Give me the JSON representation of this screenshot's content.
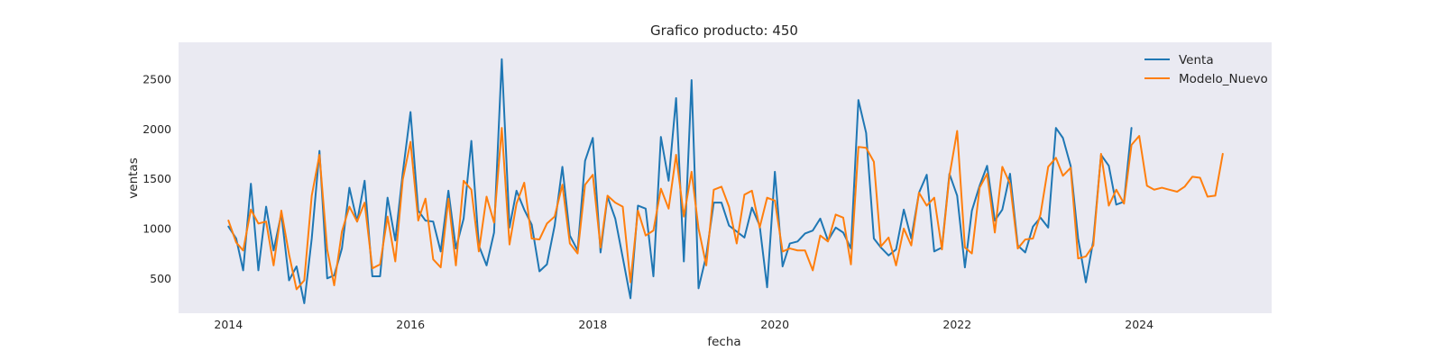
{
  "chart_data": {
    "type": "line",
    "title": "Grafico producto: 450",
    "xlabel": "fecha",
    "ylabel": "ventas",
    "xlim": [
      "2013-06-15",
      "2025-06-15"
    ],
    "ylim": [
      150,
      2870
    ],
    "x_ticks": [
      "2014-01-01",
      "2016-01-01",
      "2018-01-01",
      "2020-01-01",
      "2022-01-01",
      "2024-01-01"
    ],
    "x_tick_labels": [
      "2014",
      "2016",
      "2018",
      "2020",
      "2022",
      "2024"
    ],
    "y_ticks": [
      500,
      1000,
      1500,
      2000,
      2500
    ],
    "y_tick_labels": [
      "500",
      "1000",
      "1500",
      "2000",
      "2500"
    ],
    "grid": false,
    "background": "#EAEAF2",
    "legend": "top-right",
    "series": [
      {
        "name": "Venta",
        "color": "#1f77b4",
        "start": "2014-01",
        "values": [
          1020,
          900,
          580,
          1450,
          580,
          1220,
          780,
          1150,
          480,
          620,
          250,
          900,
          1780,
          500,
          530,
          800,
          1410,
          1070,
          1480,
          520,
          520,
          1310,
          880,
          1560,
          2170,
          1180,
          1080,
          1070,
          770,
          1380,
          800,
          1100,
          1880,
          830,
          630,
          960,
          2700,
          1010,
          1380,
          1190,
          1040,
          570,
          640,
          1030,
          1620,
          930,
          780,
          1680,
          1910,
          760,
          1320,
          1100,
          710,
          300,
          1230,
          1200,
          520,
          1920,
          1480,
          2310,
          670,
          2490,
          400,
          730,
          1260,
          1260,
          1030,
          970,
          910,
          1210,
          1030,
          410,
          1570,
          620,
          850,
          870,
          950,
          980,
          1100,
          880,
          1010,
          960,
          800,
          2290,
          1960,
          900,
          810,
          730,
          790,
          1190,
          900,
          1360,
          1540,
          770,
          810,
          1550,
          1330,
          610,
          1180,
          1430,
          1630,
          1080,
          1190,
          1550,
          830,
          760,
          1020,
          1110,
          1010,
          2010,
          1910,
          1630,
          900,
          460,
          880,
          1740,
          1630,
          1240,
          1270,
          2010
        ]
      },
      {
        "name": "Modelo_Nuevo",
        "color": "#ff7f0e",
        "start": "2014-01",
        "values": [
          1080,
          860,
          780,
          1190,
          1050,
          1070,
          630,
          1180,
          740,
          390,
          480,
          1330,
          1740,
          790,
          430,
          970,
          1220,
          1070,
          1260,
          600,
          640,
          1120,
          670,
          1490,
          1870,
          1080,
          1300,
          690,
          610,
          1300,
          630,
          1480,
          1390,
          770,
          1320,
          1060,
          2010,
          840,
          1250,
          1460,
          900,
          890,
          1050,
          1120,
          1440,
          850,
          750,
          1440,
          1540,
          810,
          1330,
          1260,
          1220,
          460,
          1180,
          930,
          980,
          1400,
          1200,
          1740,
          1120,
          1570,
          1000,
          630,
          1390,
          1420,
          1220,
          850,
          1340,
          1380,
          1010,
          1310,
          1280,
          770,
          800,
          780,
          780,
          580,
          930,
          870,
          1140,
          1110,
          640,
          1820,
          1810,
          1670,
          820,
          910,
          630,
          1000,
          830,
          1360,
          1230,
          1310,
          790,
          1530,
          1980,
          810,
          750,
          1410,
          1550,
          960,
          1620,
          1450,
          800,
          890,
          900,
          1140,
          1620,
          1710,
          1530,
          1610,
          700,
          720,
          830,
          1750,
          1230,
          1390,
          1250,
          1840,
          1930,
          1430,
          1390,
          1410,
          1390,
          1370,
          1420,
          1520,
          1510,
          1320,
          1330,
          1750
        ]
      }
    ]
  }
}
